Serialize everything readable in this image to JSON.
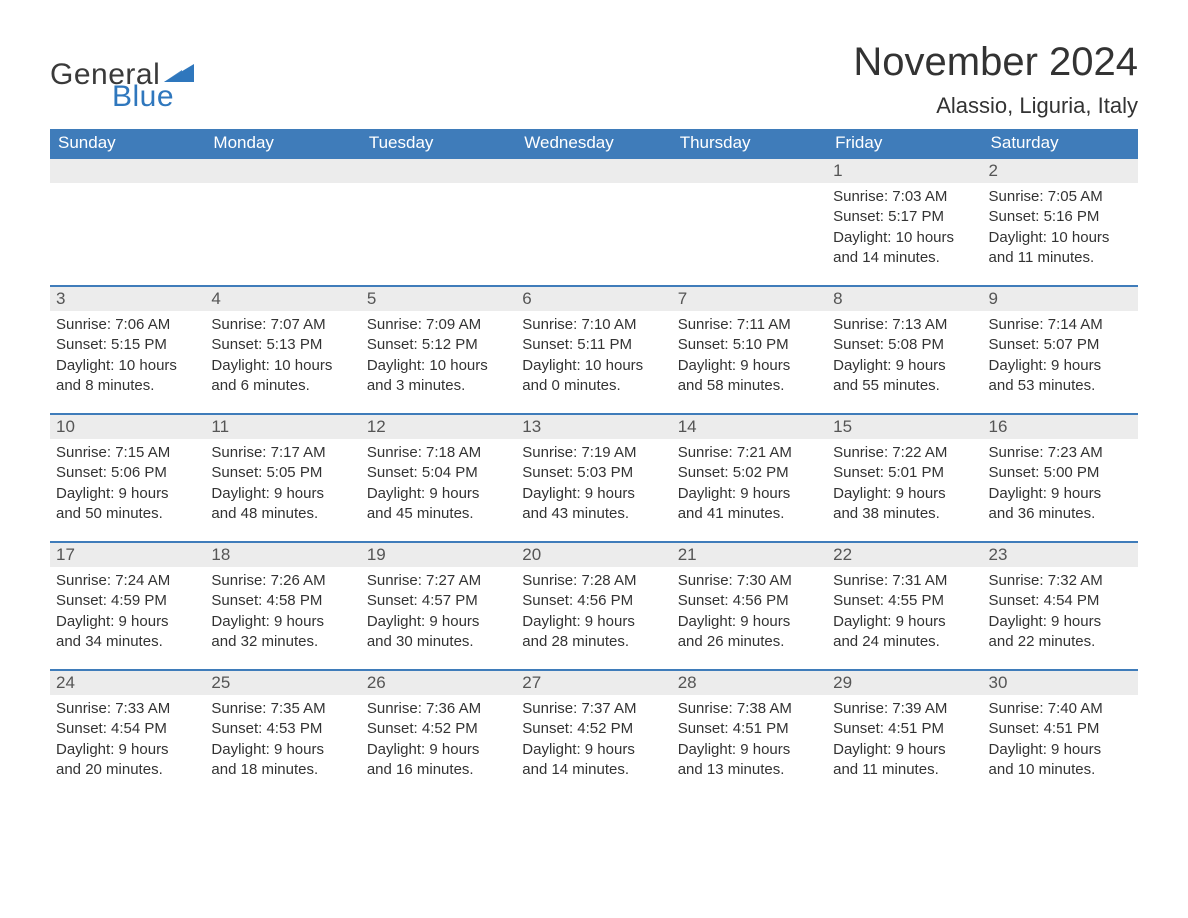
{
  "colors": {
    "header_bg": "#3f7cba",
    "header_text": "#ffffff",
    "daynum_bg": "#ececec",
    "daynum_border_top": "#3f7cba",
    "body_text": "#333333",
    "logo_blue": "#2f77bd",
    "logo_dark": "#3a3a3a",
    "page_bg": "#ffffff"
  },
  "logo": {
    "line1": "General",
    "line2": "Blue"
  },
  "title": "November 2024",
  "location": "Alassio, Liguria, Italy",
  "weekdays": [
    "Sunday",
    "Monday",
    "Tuesday",
    "Wednesday",
    "Thursday",
    "Friday",
    "Saturday"
  ],
  "weeks": [
    [
      null,
      null,
      null,
      null,
      null,
      {
        "n": "1",
        "sunrise": "Sunrise: 7:03 AM",
        "sunset": "Sunset: 5:17 PM",
        "day1": "Daylight: 10 hours",
        "day2": "and 14 minutes."
      },
      {
        "n": "2",
        "sunrise": "Sunrise: 7:05 AM",
        "sunset": "Sunset: 5:16 PM",
        "day1": "Daylight: 10 hours",
        "day2": "and 11 minutes."
      }
    ],
    [
      {
        "n": "3",
        "sunrise": "Sunrise: 7:06 AM",
        "sunset": "Sunset: 5:15 PM",
        "day1": "Daylight: 10 hours",
        "day2": "and 8 minutes."
      },
      {
        "n": "4",
        "sunrise": "Sunrise: 7:07 AM",
        "sunset": "Sunset: 5:13 PM",
        "day1": "Daylight: 10 hours",
        "day2": "and 6 minutes."
      },
      {
        "n": "5",
        "sunrise": "Sunrise: 7:09 AM",
        "sunset": "Sunset: 5:12 PM",
        "day1": "Daylight: 10 hours",
        "day2": "and 3 minutes."
      },
      {
        "n": "6",
        "sunrise": "Sunrise: 7:10 AM",
        "sunset": "Sunset: 5:11 PM",
        "day1": "Daylight: 10 hours",
        "day2": "and 0 minutes."
      },
      {
        "n": "7",
        "sunrise": "Sunrise: 7:11 AM",
        "sunset": "Sunset: 5:10 PM",
        "day1": "Daylight: 9 hours",
        "day2": "and 58 minutes."
      },
      {
        "n": "8",
        "sunrise": "Sunrise: 7:13 AM",
        "sunset": "Sunset: 5:08 PM",
        "day1": "Daylight: 9 hours",
        "day2": "and 55 minutes."
      },
      {
        "n": "9",
        "sunrise": "Sunrise: 7:14 AM",
        "sunset": "Sunset: 5:07 PM",
        "day1": "Daylight: 9 hours",
        "day2": "and 53 minutes."
      }
    ],
    [
      {
        "n": "10",
        "sunrise": "Sunrise: 7:15 AM",
        "sunset": "Sunset: 5:06 PM",
        "day1": "Daylight: 9 hours",
        "day2": "and 50 minutes."
      },
      {
        "n": "11",
        "sunrise": "Sunrise: 7:17 AM",
        "sunset": "Sunset: 5:05 PM",
        "day1": "Daylight: 9 hours",
        "day2": "and 48 minutes."
      },
      {
        "n": "12",
        "sunrise": "Sunrise: 7:18 AM",
        "sunset": "Sunset: 5:04 PM",
        "day1": "Daylight: 9 hours",
        "day2": "and 45 minutes."
      },
      {
        "n": "13",
        "sunrise": "Sunrise: 7:19 AM",
        "sunset": "Sunset: 5:03 PM",
        "day1": "Daylight: 9 hours",
        "day2": "and 43 minutes."
      },
      {
        "n": "14",
        "sunrise": "Sunrise: 7:21 AM",
        "sunset": "Sunset: 5:02 PM",
        "day1": "Daylight: 9 hours",
        "day2": "and 41 minutes."
      },
      {
        "n": "15",
        "sunrise": "Sunrise: 7:22 AM",
        "sunset": "Sunset: 5:01 PM",
        "day1": "Daylight: 9 hours",
        "day2": "and 38 minutes."
      },
      {
        "n": "16",
        "sunrise": "Sunrise: 7:23 AM",
        "sunset": "Sunset: 5:00 PM",
        "day1": "Daylight: 9 hours",
        "day2": "and 36 minutes."
      }
    ],
    [
      {
        "n": "17",
        "sunrise": "Sunrise: 7:24 AM",
        "sunset": "Sunset: 4:59 PM",
        "day1": "Daylight: 9 hours",
        "day2": "and 34 minutes."
      },
      {
        "n": "18",
        "sunrise": "Sunrise: 7:26 AM",
        "sunset": "Sunset: 4:58 PM",
        "day1": "Daylight: 9 hours",
        "day2": "and 32 minutes."
      },
      {
        "n": "19",
        "sunrise": "Sunrise: 7:27 AM",
        "sunset": "Sunset: 4:57 PM",
        "day1": "Daylight: 9 hours",
        "day2": "and 30 minutes."
      },
      {
        "n": "20",
        "sunrise": "Sunrise: 7:28 AM",
        "sunset": "Sunset: 4:56 PM",
        "day1": "Daylight: 9 hours",
        "day2": "and 28 minutes."
      },
      {
        "n": "21",
        "sunrise": "Sunrise: 7:30 AM",
        "sunset": "Sunset: 4:56 PM",
        "day1": "Daylight: 9 hours",
        "day2": "and 26 minutes."
      },
      {
        "n": "22",
        "sunrise": "Sunrise: 7:31 AM",
        "sunset": "Sunset: 4:55 PM",
        "day1": "Daylight: 9 hours",
        "day2": "and 24 minutes."
      },
      {
        "n": "23",
        "sunrise": "Sunrise: 7:32 AM",
        "sunset": "Sunset: 4:54 PM",
        "day1": "Daylight: 9 hours",
        "day2": "and 22 minutes."
      }
    ],
    [
      {
        "n": "24",
        "sunrise": "Sunrise: 7:33 AM",
        "sunset": "Sunset: 4:54 PM",
        "day1": "Daylight: 9 hours",
        "day2": "and 20 minutes."
      },
      {
        "n": "25",
        "sunrise": "Sunrise: 7:35 AM",
        "sunset": "Sunset: 4:53 PM",
        "day1": "Daylight: 9 hours",
        "day2": "and 18 minutes."
      },
      {
        "n": "26",
        "sunrise": "Sunrise: 7:36 AM",
        "sunset": "Sunset: 4:52 PM",
        "day1": "Daylight: 9 hours",
        "day2": "and 16 minutes."
      },
      {
        "n": "27",
        "sunrise": "Sunrise: 7:37 AM",
        "sunset": "Sunset: 4:52 PM",
        "day1": "Daylight: 9 hours",
        "day2": "and 14 minutes."
      },
      {
        "n": "28",
        "sunrise": "Sunrise: 7:38 AM",
        "sunset": "Sunset: 4:51 PM",
        "day1": "Daylight: 9 hours",
        "day2": "and 13 minutes."
      },
      {
        "n": "29",
        "sunrise": "Sunrise: 7:39 AM",
        "sunset": "Sunset: 4:51 PM",
        "day1": "Daylight: 9 hours",
        "day2": "and 11 minutes."
      },
      {
        "n": "30",
        "sunrise": "Sunrise: 7:40 AM",
        "sunset": "Sunset: 4:51 PM",
        "day1": "Daylight: 9 hours",
        "day2": "and 10 minutes."
      }
    ]
  ]
}
